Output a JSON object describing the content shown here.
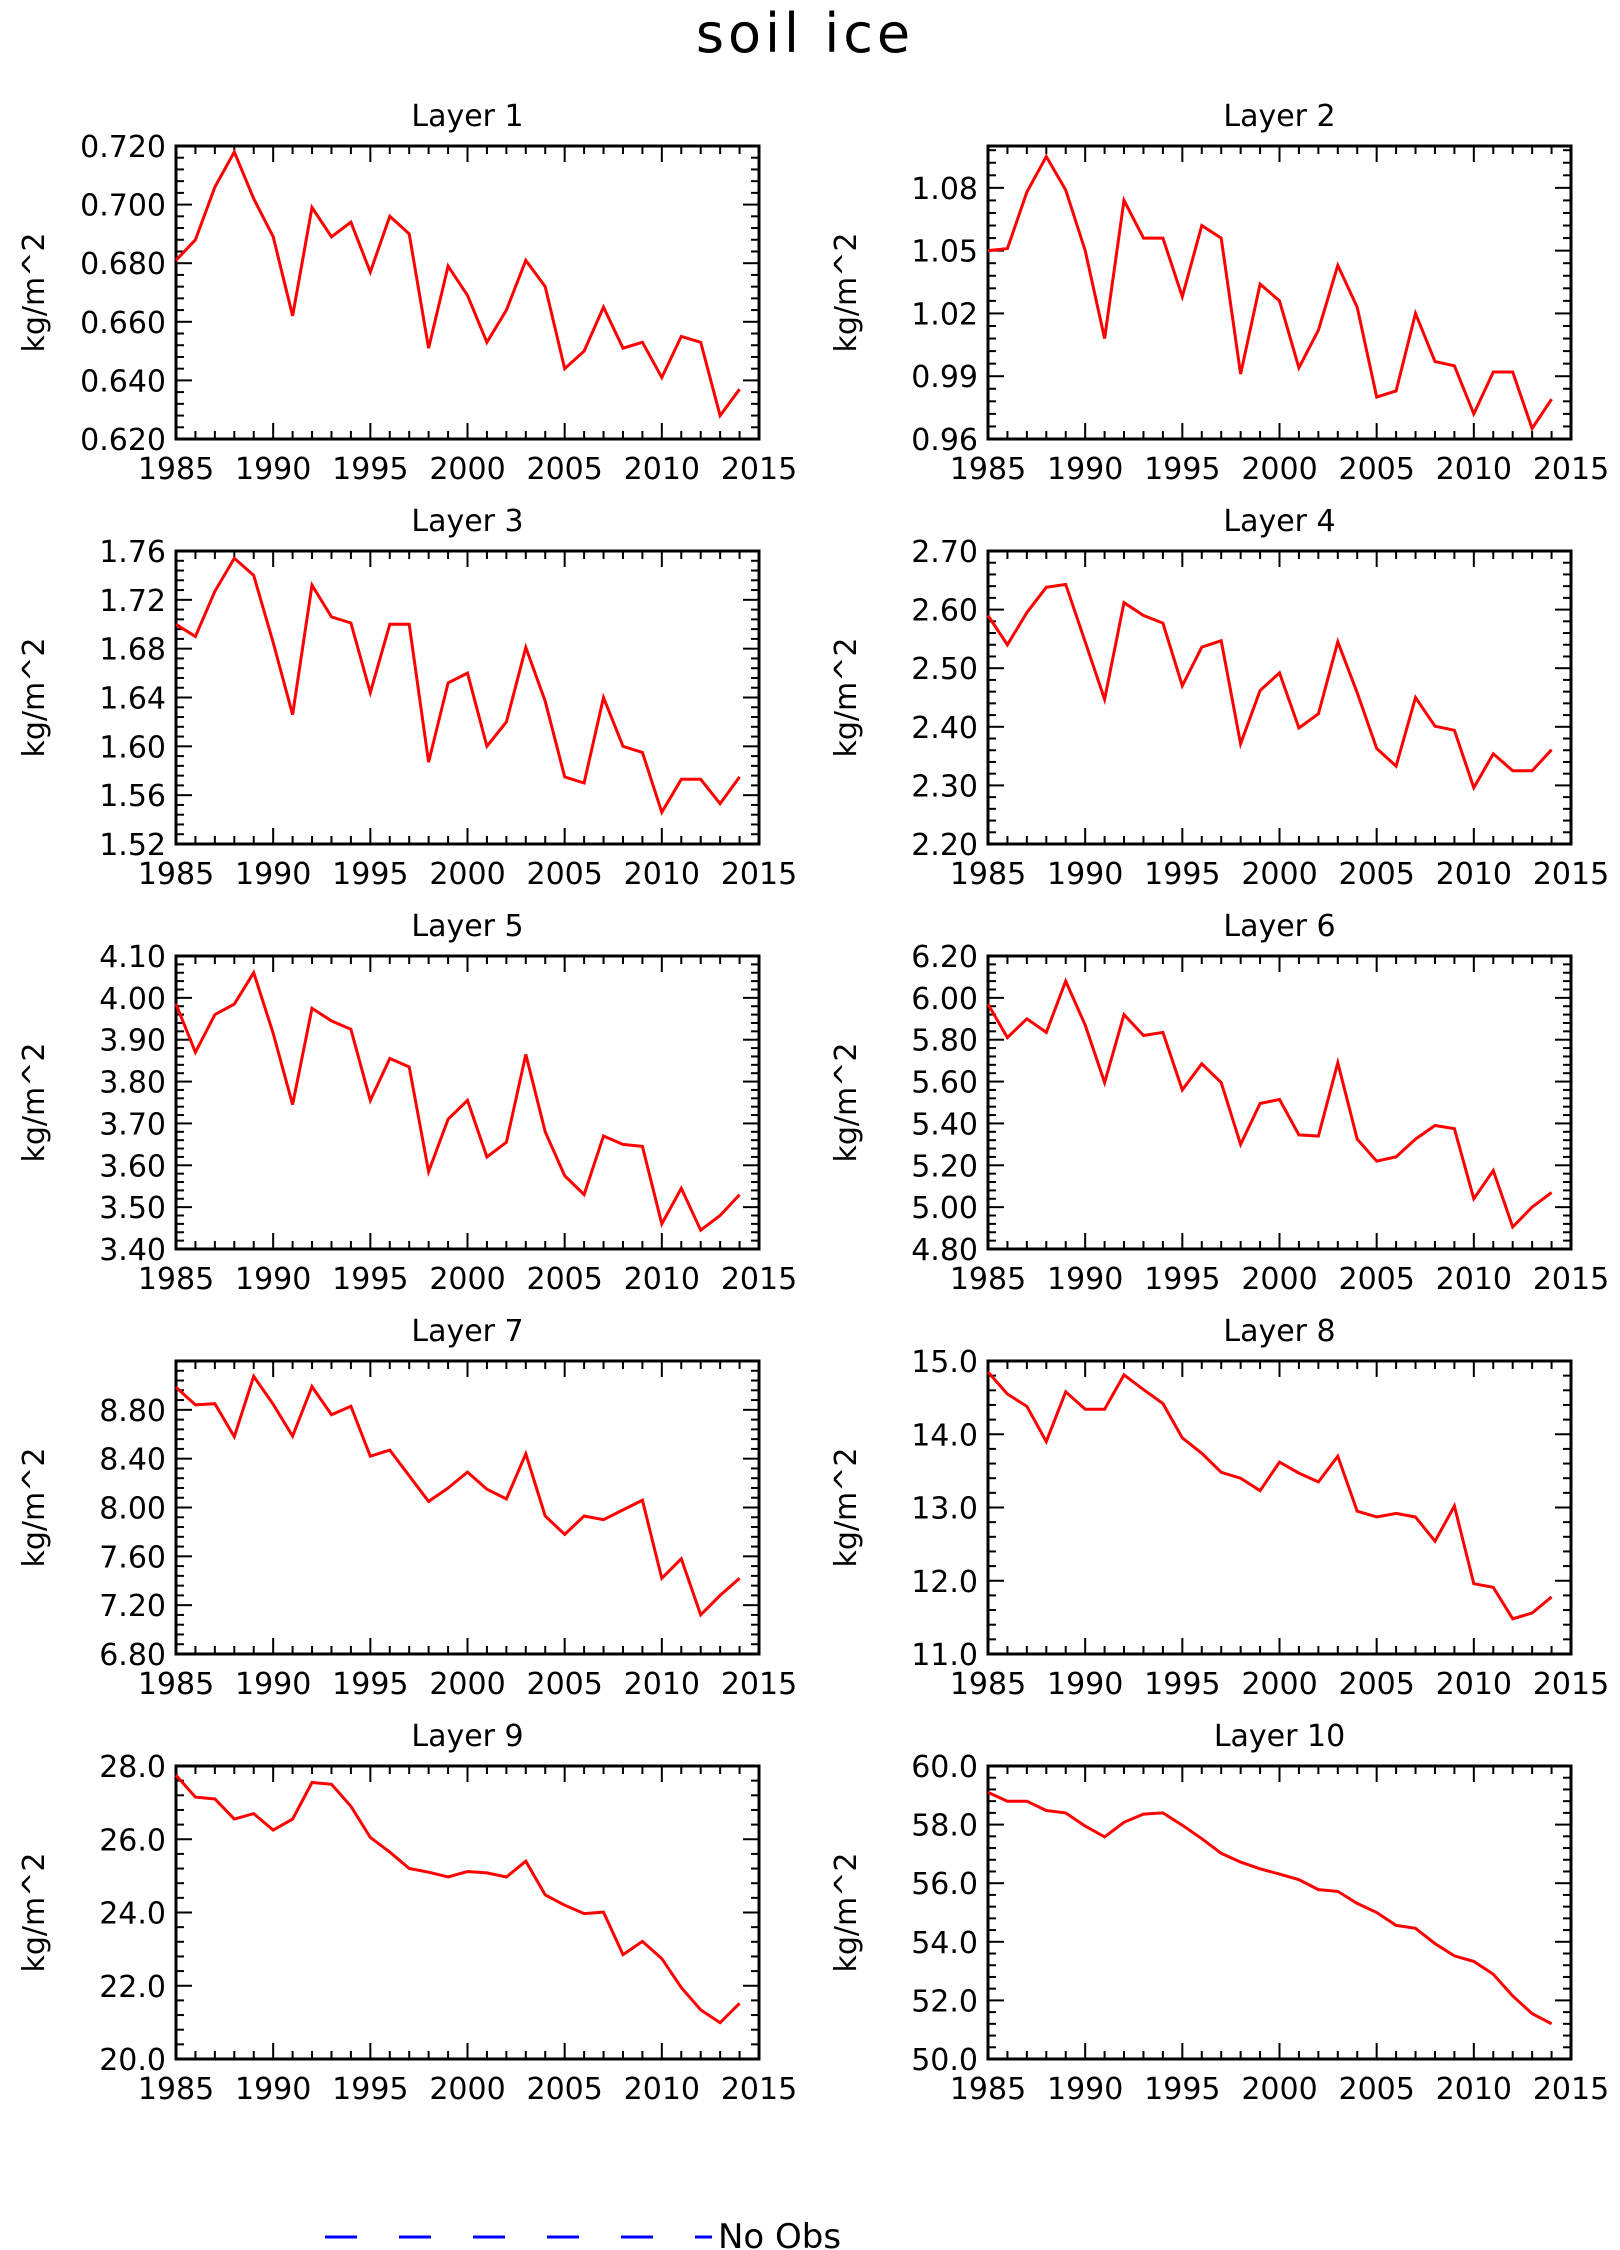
{
  "title": "soil ice",
  "line_color": "#ff0000",
  "legend": {
    "label": "No Obs",
    "line_color": "#0000ff",
    "style": "dashed"
  },
  "chart_data": [
    {
      "type": "line",
      "title": "Layer 1",
      "xlabel": "",
      "ylabel": "kg/m^2",
      "xlim": [
        1985,
        2015
      ],
      "ylim": [
        0.62,
        0.72
      ],
      "x_ticks": [
        "1985",
        "1990",
        "1995",
        "2000",
        "2005",
        "2010",
        "2015"
      ],
      "y_ticks": [
        "0.620",
        "0.640",
        "0.660",
        "0.680",
        "0.700",
        "0.720"
      ],
      "x": [
        1985,
        1986,
        1987,
        1988,
        1989,
        1990,
        1991,
        1992,
        1993,
        1994,
        1995,
        1996,
        1997,
        1998,
        1999,
        2000,
        2001,
        2002,
        2003,
        2004,
        2005,
        2006,
        2007,
        2008,
        2009,
        2010,
        2011,
        2012,
        2013,
        2014
      ],
      "values": [
        0.681,
        0.688,
        0.706,
        0.718,
        0.702,
        0.689,
        0.662,
        0.699,
        0.689,
        0.694,
        0.677,
        0.696,
        0.69,
        0.651,
        0.679,
        0.669,
        0.653,
        0.664,
        0.681,
        0.672,
        0.644,
        0.65,
        0.665,
        0.651,
        0.653,
        0.641,
        0.655,
        0.653,
        0.628,
        0.637
      ]
    },
    {
      "type": "line",
      "title": "Layer 2",
      "xlabel": "",
      "ylabel": "kg/m^2",
      "xlim": [
        1985,
        2015
      ],
      "ylim": [
        0.96,
        1.1
      ],
      "x_ticks": [
        "1985",
        "1990",
        "1995",
        "2000",
        "2005",
        "2010",
        "2015"
      ],
      "y_ticks": [
        "0.96",
        "0.99",
        "1.02",
        "1.05",
        "1.08"
      ],
      "x": [
        1985,
        1986,
        1987,
        1988,
        1989,
        1990,
        1991,
        1992,
        1993,
        1994,
        1995,
        1996,
        1997,
        1998,
        1999,
        2000,
        2001,
        2002,
        2003,
        2004,
        2005,
        2006,
        2007,
        2008,
        2009,
        2010,
        2011,
        2012,
        2013,
        2014
      ],
      "values": [
        1.05,
        1.051,
        1.078,
        1.095,
        1.079,
        1.05,
        1.008,
        1.074,
        1.056,
        1.056,
        1.028,
        1.062,
        1.056,
        0.991,
        1.034,
        1.026,
        0.994,
        1.012,
        1.043,
        1.023,
        0.98,
        0.983,
        1.02,
        0.997,
        0.995,
        0.972,
        0.992,
        0.992,
        0.965,
        0.979
      ]
    },
    {
      "type": "line",
      "title": "Layer 3",
      "xlabel": "",
      "ylabel": "kg/m^2",
      "xlim": [
        1985,
        2015
      ],
      "ylim": [
        1.52,
        1.76
      ],
      "x_ticks": [
        "1985",
        "1990",
        "1995",
        "2000",
        "2005",
        "2010",
        "2015"
      ],
      "y_ticks": [
        "1.52",
        "1.56",
        "1.60",
        "1.64",
        "1.68",
        "1.72",
        "1.76"
      ],
      "x": [
        1985,
        1986,
        1987,
        1988,
        1989,
        1990,
        1991,
        1992,
        1993,
        1994,
        1995,
        1996,
        1997,
        1998,
        1999,
        2000,
        2001,
        2002,
        2003,
        2004,
        2005,
        2006,
        2007,
        2008,
        2009,
        2010,
        2011,
        2012,
        2013,
        2014
      ],
      "values": [
        1.7,
        1.69,
        1.727,
        1.754,
        1.74,
        1.685,
        1.626,
        1.732,
        1.706,
        1.701,
        1.644,
        1.7,
        1.7,
        1.587,
        1.652,
        1.66,
        1.6,
        1.62,
        1.681,
        1.637,
        1.575,
        1.57,
        1.64,
        1.6,
        1.595,
        1.546,
        1.573,
        1.573,
        1.553,
        1.575
      ]
    },
    {
      "type": "line",
      "title": "Layer 4",
      "xlabel": "",
      "ylabel": "kg/m^2",
      "xlim": [
        1985,
        2015
      ],
      "ylim": [
        2.2,
        2.7
      ],
      "x_ticks": [
        "1985",
        "1990",
        "1995",
        "2000",
        "2005",
        "2010",
        "2015"
      ],
      "y_ticks": [
        "2.20",
        "2.30",
        "2.40",
        "2.50",
        "2.60",
        "2.70"
      ],
      "x": [
        1985,
        1986,
        1987,
        1988,
        1989,
        1990,
        1991,
        1992,
        1993,
        1994,
        1995,
        1996,
        1997,
        1998,
        1999,
        2000,
        2001,
        2002,
        2003,
        2004,
        2005,
        2006,
        2007,
        2008,
        2009,
        2010,
        2011,
        2012,
        2013,
        2014
      ],
      "values": [
        2.59,
        2.54,
        2.595,
        2.638,
        2.643,
        2.545,
        2.447,
        2.612,
        2.59,
        2.577,
        2.47,
        2.536,
        2.547,
        2.371,
        2.462,
        2.492,
        2.398,
        2.422,
        2.545,
        2.458,
        2.363,
        2.333,
        2.45,
        2.401,
        2.394,
        2.296,
        2.354,
        2.325,
        2.325,
        2.361
      ]
    },
    {
      "type": "line",
      "title": "Layer 5",
      "xlabel": "",
      "ylabel": "kg/m^2",
      "xlim": [
        1985,
        2015
      ],
      "ylim": [
        3.4,
        4.1
      ],
      "x_ticks": [
        "1985",
        "1990",
        "1995",
        "2000",
        "2005",
        "2010",
        "2015"
      ],
      "y_ticks": [
        "3.40",
        "3.50",
        "3.60",
        "3.70",
        "3.80",
        "3.90",
        "4.00",
        "4.10"
      ],
      "x": [
        1985,
        1986,
        1987,
        1988,
        1989,
        1990,
        1991,
        1992,
        1993,
        1994,
        1995,
        1996,
        1997,
        1998,
        1999,
        2000,
        2001,
        2002,
        2003,
        2004,
        2005,
        2006,
        2007,
        2008,
        2009,
        2010,
        2011,
        2012,
        2013,
        2014
      ],
      "values": [
        3.985,
        3.87,
        3.96,
        3.985,
        4.06,
        3.915,
        3.745,
        3.975,
        3.945,
        3.925,
        3.755,
        3.855,
        3.835,
        3.585,
        3.71,
        3.755,
        3.62,
        3.655,
        3.865,
        3.68,
        3.575,
        3.53,
        3.67,
        3.65,
        3.645,
        3.46,
        3.545,
        3.445,
        3.48,
        3.53
      ]
    },
    {
      "type": "line",
      "title": "Layer 6",
      "xlabel": "",
      "ylabel": "kg/m^2",
      "xlim": [
        1985,
        2015
      ],
      "ylim": [
        4.8,
        6.2
      ],
      "x_ticks": [
        "1985",
        "1990",
        "1995",
        "2000",
        "2005",
        "2010",
        "2015"
      ],
      "y_ticks": [
        "4.80",
        "5.00",
        "5.20",
        "5.40",
        "5.60",
        "5.80",
        "6.00",
        "6.20"
      ],
      "x": [
        1985,
        1986,
        1987,
        1988,
        1989,
        1990,
        1991,
        1992,
        1993,
        1994,
        1995,
        1996,
        1997,
        1998,
        1999,
        2000,
        2001,
        2002,
        2003,
        2004,
        2005,
        2006,
        2007,
        2008,
        2009,
        2010,
        2011,
        2012,
        2013,
        2014
      ],
      "values": [
        5.97,
        5.81,
        5.9,
        5.835,
        6.08,
        5.87,
        5.595,
        5.92,
        5.82,
        5.835,
        5.56,
        5.685,
        5.595,
        5.3,
        5.495,
        5.515,
        5.345,
        5.34,
        5.69,
        5.325,
        5.22,
        5.24,
        5.325,
        5.39,
        5.375,
        5.04,
        5.175,
        4.905,
        5.0,
        5.07
      ]
    },
    {
      "type": "line",
      "title": "Layer 7",
      "xlabel": "",
      "ylabel": "kg/m^2",
      "xlim": [
        1985,
        2015
      ],
      "ylim": [
        6.8,
        9.2
      ],
      "x_ticks": [
        "1985",
        "1990",
        "1995",
        "2000",
        "2005",
        "2010",
        "2015"
      ],
      "y_ticks": [
        "6.80",
        "7.20",
        "7.60",
        "8.00",
        "8.40",
        "8.80"
      ],
      "x": [
        1985,
        1986,
        1987,
        1988,
        1989,
        1990,
        1991,
        1992,
        1993,
        1994,
        1995,
        1996,
        1997,
        1998,
        1999,
        2000,
        2001,
        2002,
        2003,
        2004,
        2005,
        2006,
        2007,
        2008,
        2009,
        2010,
        2011,
        2012,
        2013,
        2014
      ],
      "values": [
        8.985,
        8.84,
        8.85,
        8.58,
        9.075,
        8.845,
        8.585,
        8.99,
        8.76,
        8.83,
        8.42,
        8.47,
        8.26,
        8.05,
        8.16,
        8.29,
        8.15,
        8.07,
        8.44,
        7.93,
        7.78,
        7.93,
        7.9,
        7.98,
        8.06,
        7.42,
        7.58,
        7.12,
        7.28,
        7.42
      ]
    },
    {
      "type": "line",
      "title": "Layer 8",
      "xlabel": "",
      "ylabel": "kg/m^2",
      "xlim": [
        1985,
        2015
      ],
      "ylim": [
        11.0,
        15.0
      ],
      "x_ticks": [
        "1985",
        "1990",
        "1995",
        "2000",
        "2005",
        "2010",
        "2015"
      ],
      "y_ticks": [
        "11.0",
        "12.0",
        "13.0",
        "14.0",
        "15.0"
      ],
      "x": [
        1985,
        1986,
        1987,
        1988,
        1989,
        1990,
        1991,
        1992,
        1993,
        1994,
        1995,
        1996,
        1997,
        1998,
        1999,
        2000,
        2001,
        2002,
        2003,
        2004,
        2005,
        2006,
        2007,
        2008,
        2009,
        2010,
        2011,
        2012,
        2013,
        2014
      ],
      "values": [
        14.85,
        14.55,
        14.38,
        13.9,
        14.58,
        14.34,
        14.34,
        14.81,
        14.61,
        14.42,
        13.95,
        13.74,
        13.48,
        13.4,
        13.23,
        13.62,
        13.47,
        13.35,
        13.7,
        12.95,
        12.87,
        12.92,
        12.87,
        12.54,
        13.02,
        11.96,
        11.91,
        11.48,
        11.56,
        11.78
      ]
    },
    {
      "type": "line",
      "title": "Layer 9",
      "xlabel": "",
      "ylabel": "kg/m^2",
      "xlim": [
        1985,
        2015
      ],
      "ylim": [
        20.0,
        28.0
      ],
      "x_ticks": [
        "1985",
        "1990",
        "1995",
        "2000",
        "2005",
        "2010",
        "2015"
      ],
      "y_ticks": [
        "20.0",
        "22.0",
        "24.0",
        "26.0",
        "28.0"
      ],
      "x": [
        1985,
        1986,
        1987,
        1988,
        1989,
        1990,
        1991,
        1992,
        1993,
        1994,
        1995,
        1996,
        1997,
        1998,
        1999,
        2000,
        2001,
        2002,
        2003,
        2004,
        2005,
        2006,
        2007,
        2008,
        2009,
        2010,
        2011,
        2012,
        2013,
        2014
      ],
      "values": [
        27.75,
        27.15,
        27.1,
        26.55,
        26.7,
        26.25,
        26.55,
        27.55,
        27.5,
        26.9,
        26.05,
        25.65,
        25.2,
        25.1,
        24.97,
        25.12,
        25.08,
        24.97,
        25.4,
        24.48,
        24.2,
        23.97,
        24.01,
        22.85,
        23.21,
        22.74,
        21.95,
        21.34,
        20.99,
        21.52
      ]
    },
    {
      "type": "line",
      "title": "Layer 10",
      "xlabel": "",
      "ylabel": "kg/m^2",
      "xlim": [
        1985,
        2015
      ],
      "ylim": [
        50.0,
        60.0
      ],
      "x_ticks": [
        "1985",
        "1990",
        "1995",
        "2000",
        "2005",
        "2010",
        "2015"
      ],
      "y_ticks": [
        "50.0",
        "52.0",
        "54.0",
        "56.0",
        "58.0",
        "60.0"
      ],
      "x": [
        1985,
        1986,
        1987,
        1988,
        1989,
        1990,
        1991,
        1992,
        1993,
        1994,
        1995,
        1996,
        1997,
        1998,
        1999,
        2000,
        2001,
        2002,
        2003,
        2004,
        2005,
        2006,
        2007,
        2008,
        2009,
        2010,
        2011,
        2012,
        2013,
        2014
      ],
      "values": [
        59.1,
        58.8,
        58.8,
        58.48,
        58.4,
        57.95,
        57.58,
        58.08,
        58.36,
        58.4,
        57.98,
        57.52,
        57.02,
        56.72,
        56.49,
        56.31,
        56.12,
        55.78,
        55.72,
        55.31,
        55.0,
        54.56,
        54.46,
        53.94,
        53.52,
        53.33,
        52.89,
        52.15,
        51.55,
        51.2
      ]
    }
  ]
}
